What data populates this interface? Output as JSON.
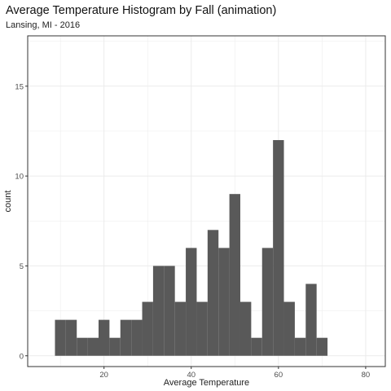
{
  "chart_data": {
    "type": "bar",
    "title": "Average Temperature Histogram by Fall (animation)",
    "subtitle": "Lansing, MI - 2016",
    "xlabel": "Average Temperature",
    "ylabel": "count",
    "xlim": [
      2.5,
      84.5
    ],
    "ylim": [
      -0.6,
      17.8
    ],
    "x_ticks": [
      20,
      40,
      60,
      80
    ],
    "y_ticks": [
      0,
      5,
      10,
      15
    ],
    "bin_width": 2.5,
    "bins": [
      {
        "x0": 8.75,
        "x1": 11.25,
        "count": 2
      },
      {
        "x0": 11.25,
        "x1": 13.75,
        "count": 2
      },
      {
        "x0": 13.75,
        "x1": 16.25,
        "count": 1
      },
      {
        "x0": 16.25,
        "x1": 18.75,
        "count": 1
      },
      {
        "x0": 18.75,
        "x1": 21.25,
        "count": 2
      },
      {
        "x0": 21.25,
        "x1": 23.75,
        "count": 1
      },
      {
        "x0": 23.75,
        "x1": 26.25,
        "count": 2
      },
      {
        "x0": 26.25,
        "x1": 28.75,
        "count": 2
      },
      {
        "x0": 28.75,
        "x1": 31.25,
        "count": 3
      },
      {
        "x0": 31.25,
        "x1": 33.75,
        "count": 5
      },
      {
        "x0": 33.75,
        "x1": 36.25,
        "count": 5
      },
      {
        "x0": 36.25,
        "x1": 38.75,
        "count": 3
      },
      {
        "x0": 38.75,
        "x1": 41.25,
        "count": 6
      },
      {
        "x0": 41.25,
        "x1": 43.75,
        "count": 3
      },
      {
        "x0": 43.75,
        "x1": 46.25,
        "count": 7
      },
      {
        "x0": 46.25,
        "x1": 48.75,
        "count": 6
      },
      {
        "x0": 48.75,
        "x1": 51.25,
        "count": 9
      },
      {
        "x0": 51.25,
        "x1": 53.75,
        "count": 3
      },
      {
        "x0": 53.75,
        "x1": 56.25,
        "count": 1
      },
      {
        "x0": 56.25,
        "x1": 58.75,
        "count": 6
      },
      {
        "x0": 58.75,
        "x1": 61.25,
        "count": 12
      },
      {
        "x0": 61.25,
        "x1": 63.75,
        "count": 3
      },
      {
        "x0": 63.75,
        "x1": 66.25,
        "count": 1
      },
      {
        "x0": 66.25,
        "x1": 68.75,
        "count": 4
      },
      {
        "x0": 68.75,
        "x1": 71.25,
        "count": 1
      }
    ],
    "grid": true,
    "bar_color": "#595959",
    "grid_color": "#ebebeb",
    "panel_border_color": "#333333"
  }
}
